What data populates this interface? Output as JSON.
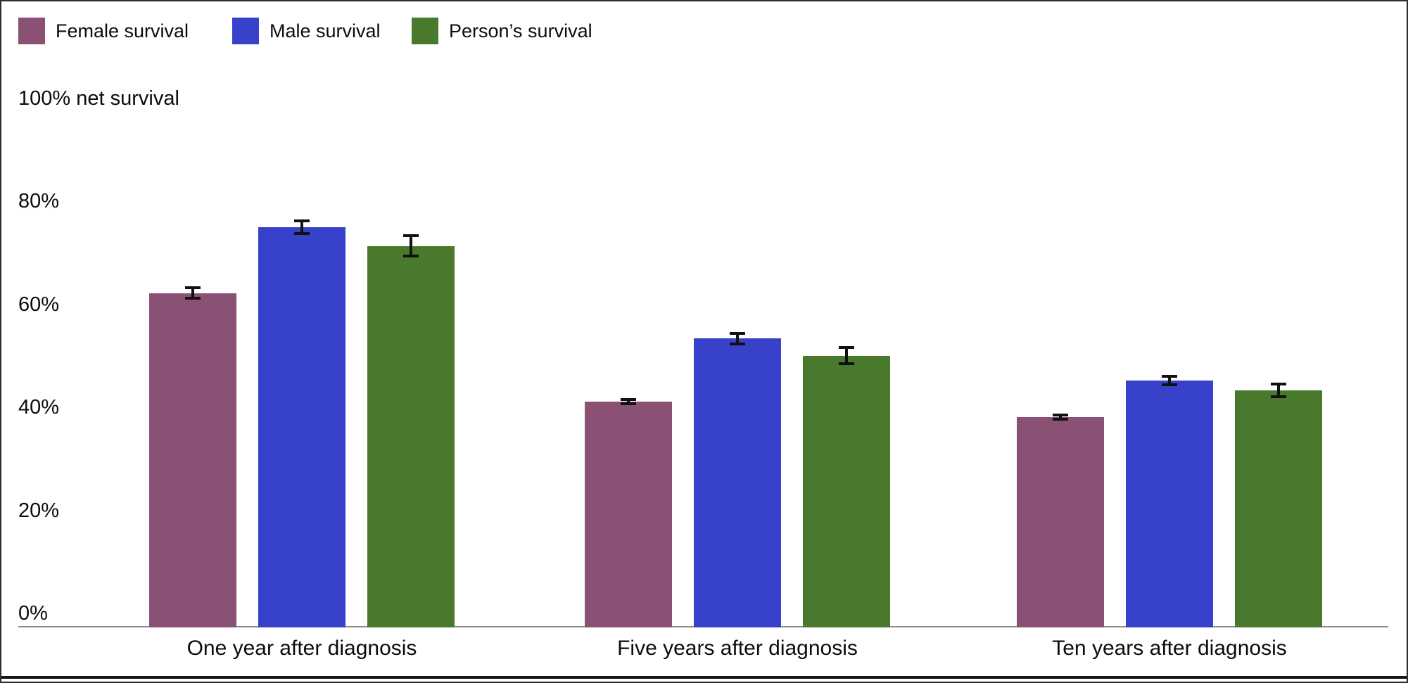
{
  "legend": {
    "items": [
      {
        "label": "Female survival",
        "color": "#8a5174"
      },
      {
        "label": "Male survival",
        "color": "#3741c9"
      },
      {
        "label": "Person’s survival",
        "color": "#48792c"
      }
    ]
  },
  "y_axis": {
    "ticks": [
      {
        "label": "100% net survival",
        "value": 100
      },
      {
        "label": "80%",
        "value": 80
      },
      {
        "label": "60%",
        "value": 60
      },
      {
        "label": "40%",
        "value": 40
      },
      {
        "label": "20%",
        "value": 20
      },
      {
        "label": "0%",
        "value": 0
      }
    ]
  },
  "chart_data": {
    "type": "bar",
    "categories": [
      "One year after diagnosis",
      "Five years after diagnosis",
      "Ten years after diagnosis"
    ],
    "series": [
      {
        "name": "Female survival",
        "color": "#8a5174",
        "values": [
          64.9,
          43.8,
          40.9
        ],
        "error_margins": [
          1.3,
          0.7,
          0.7
        ]
      },
      {
        "name": "Male survival",
        "color": "#3741c9",
        "values": [
          77.8,
          56.1,
          47.9
        ],
        "error_margins": [
          1.5,
          1.3,
          1.1
        ]
      },
      {
        "name": "Person’s survival",
        "color": "#48792c",
        "values": [
          74.1,
          52.8,
          46.1
        ],
        "error_margins": [
          2.3,
          1.8,
          1.5
        ]
      }
    ],
    "ylabel": "net survival",
    "ylim": [
      0,
      100
    ],
    "y_tick_labels": [
      "0%",
      "20%",
      "40%",
      "60%",
      "80%",
      "100% net survival"
    ],
    "grid": false,
    "error_bars": true,
    "legend_position": "top-left"
  }
}
